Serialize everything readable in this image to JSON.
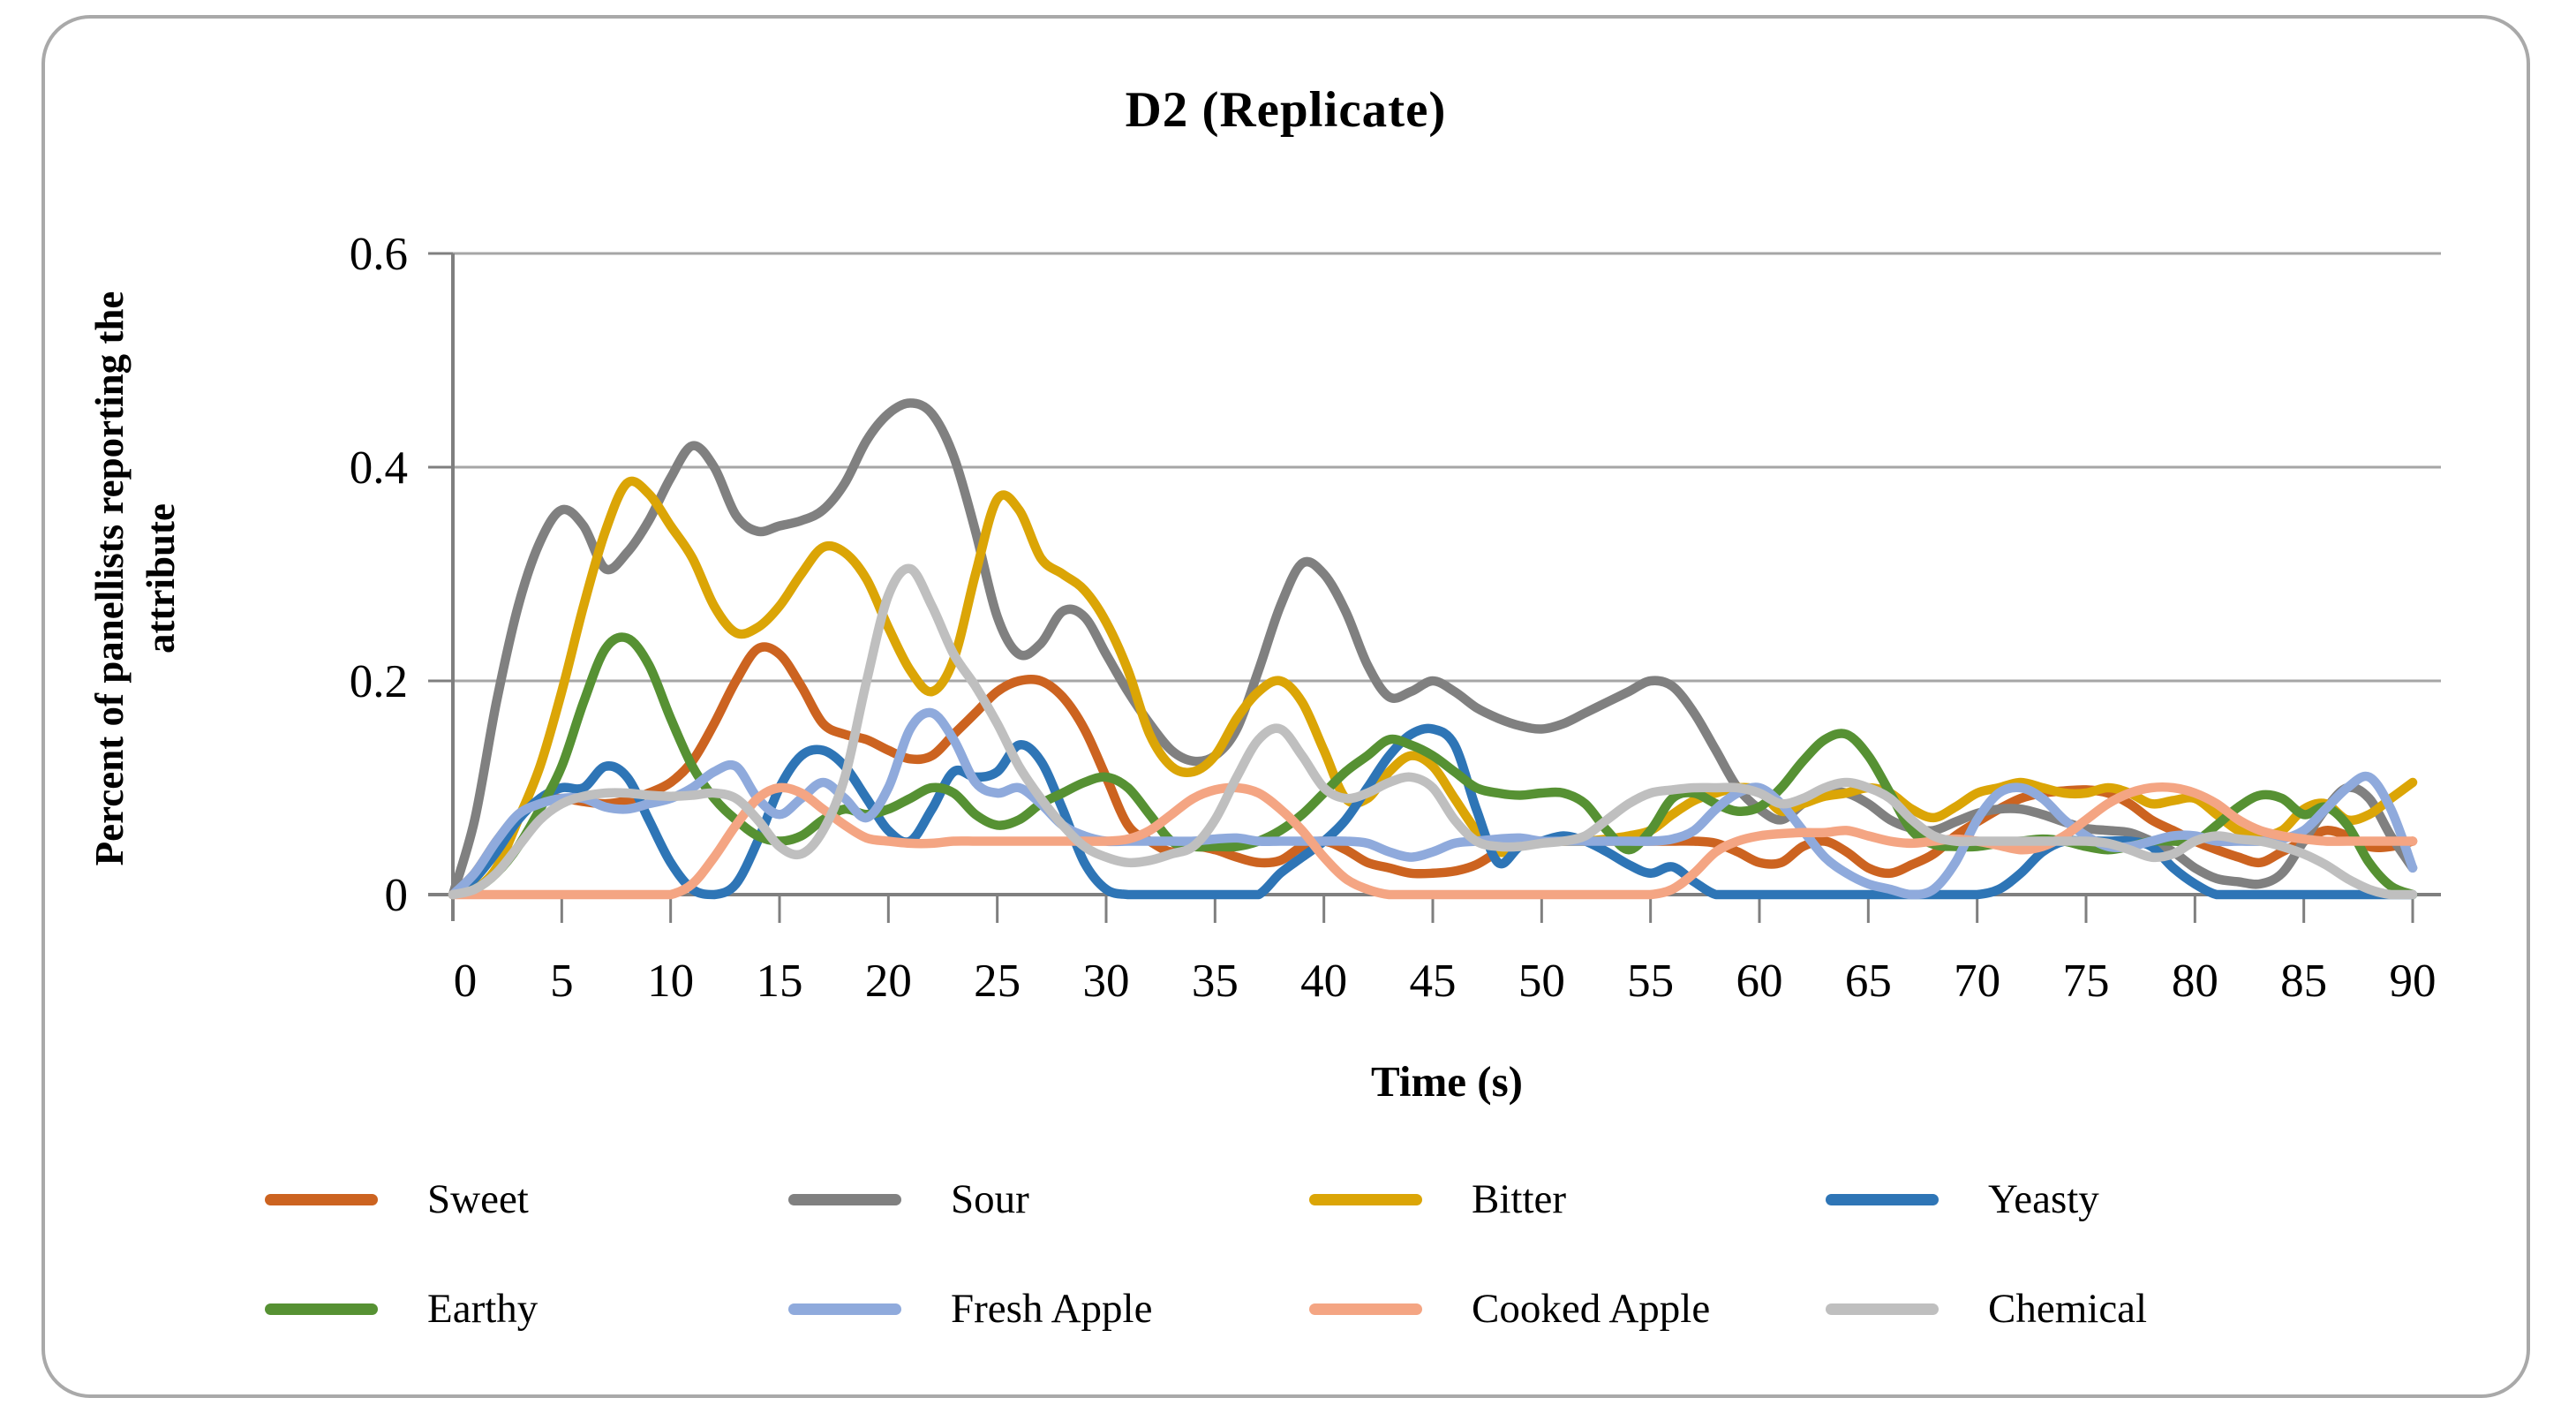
{
  "figure": {
    "border_color": "#A9A9A9",
    "background": "#FFFFFF"
  },
  "colors": {
    "axis": "#7F7F7F",
    "gridline": "#A6A6A6",
    "tick": "#7F7F7F",
    "text": "#000000"
  },
  "chart_data": {
    "type": "line",
    "smooth": true,
    "title": "D2 (Replicate)",
    "xlabel": "Time (s)",
    "ylabel": "Percent of panellists reporting the attribute",
    "ylabel_lines": [
      "Percent of panellists reporting the",
      "attribute"
    ],
    "xlim": [
      0,
      90
    ],
    "ylim": [
      0,
      0.6
    ],
    "x_ticks": [
      0,
      5,
      10,
      15,
      20,
      25,
      30,
      35,
      40,
      45,
      50,
      55,
      60,
      65,
      70,
      75,
      80,
      85,
      90
    ],
    "y_ticks": [
      0,
      0.2,
      0.4,
      0.6
    ],
    "y_tick_labels": [
      "0",
      "0.2",
      "0.4",
      "0.6"
    ],
    "grid": "horizontal",
    "legend_position": "bottom",
    "x": [
      0,
      1,
      2,
      3,
      4,
      5,
      6,
      7,
      8,
      9,
      10,
      11,
      12,
      13,
      14,
      15,
      16,
      17,
      18,
      19,
      20,
      21,
      22,
      23,
      24,
      25,
      26,
      27,
      28,
      29,
      30,
      31,
      32,
      33,
      34,
      35,
      36,
      37,
      38,
      39,
      40,
      41,
      42,
      43,
      44,
      45,
      46,
      47,
      48,
      49,
      50,
      51,
      52,
      53,
      54,
      55,
      56,
      57,
      58,
      59,
      60,
      61,
      62,
      63,
      64,
      65,
      66,
      67,
      68,
      69,
      70,
      71,
      72,
      73,
      74,
      75,
      76,
      77,
      78,
      79,
      80,
      81,
      82,
      83,
      84,
      85,
      86,
      87,
      88,
      89,
      90
    ],
    "series": [
      {
        "name": "Sweet",
        "color": "#CC6320",
        "values": [
          0,
          0.02,
          0.05,
          0.075,
          0.088,
          0.09,
          0.087,
          0.085,
          0.088,
          0.095,
          0.105,
          0.125,
          0.16,
          0.2,
          0.23,
          0.225,
          0.195,
          0.16,
          0.15,
          0.145,
          0.135,
          0.127,
          0.13,
          0.15,
          0.17,
          0.19,
          0.2,
          0.2,
          0.185,
          0.155,
          0.11,
          0.065,
          0.05,
          0.04,
          0.045,
          0.042,
          0.035,
          0.03,
          0.032,
          0.045,
          0.05,
          0.042,
          0.03,
          0.025,
          0.02,
          0.02,
          0.022,
          0.028,
          0.04,
          0.048,
          0.05,
          0.05,
          0.05,
          0.05,
          0.05,
          0.05,
          0.05,
          0.05,
          0.048,
          0.04,
          0.03,
          0.03,
          0.045,
          0.05,
          0.04,
          0.025,
          0.02,
          0.028,
          0.038,
          0.055,
          0.068,
          0.08,
          0.09,
          0.095,
          0.097,
          0.098,
          0.095,
          0.085,
          0.07,
          0.06,
          0.05,
          0.042,
          0.035,
          0.03,
          0.04,
          0.05,
          0.06,
          0.055,
          0.045,
          0.045,
          0.05
        ]
      },
      {
        "name": "Sour",
        "color": "#808080",
        "values": [
          0,
          0.07,
          0.18,
          0.27,
          0.33,
          0.36,
          0.345,
          0.305,
          0.32,
          0.35,
          0.39,
          0.42,
          0.4,
          0.355,
          0.34,
          0.345,
          0.35,
          0.36,
          0.385,
          0.425,
          0.45,
          0.46,
          0.45,
          0.41,
          0.34,
          0.26,
          0.225,
          0.235,
          0.265,
          0.26,
          0.225,
          0.19,
          0.16,
          0.135,
          0.125,
          0.13,
          0.155,
          0.21,
          0.27,
          0.31,
          0.3,
          0.265,
          0.215,
          0.185,
          0.19,
          0.2,
          0.19,
          0.175,
          0.165,
          0.158,
          0.155,
          0.16,
          0.17,
          0.18,
          0.19,
          0.2,
          0.195,
          0.17,
          0.135,
          0.1,
          0.08,
          0.07,
          0.085,
          0.095,
          0.095,
          0.085,
          0.07,
          0.062,
          0.06,
          0.068,
          0.076,
          0.08,
          0.08,
          0.075,
          0.068,
          0.062,
          0.06,
          0.058,
          0.05,
          0.04,
          0.025,
          0.015,
          0.012,
          0.01,
          0.02,
          0.05,
          0.08,
          0.1,
          0.09,
          0.055,
          0.025
        ]
      },
      {
        "name": "Bitter",
        "color": "#DBA506",
        "values": [
          0,
          0.005,
          0.025,
          0.07,
          0.12,
          0.19,
          0.27,
          0.34,
          0.385,
          0.375,
          0.345,
          0.315,
          0.27,
          0.245,
          0.25,
          0.27,
          0.3,
          0.325,
          0.32,
          0.295,
          0.25,
          0.21,
          0.19,
          0.22,
          0.3,
          0.37,
          0.36,
          0.315,
          0.3,
          0.285,
          0.255,
          0.21,
          0.15,
          0.12,
          0.115,
          0.13,
          0.165,
          0.19,
          0.2,
          0.18,
          0.135,
          0.09,
          0.09,
          0.115,
          0.13,
          0.12,
          0.09,
          0.06,
          0.04,
          0.045,
          0.05,
          0.05,
          0.05,
          0.052,
          0.055,
          0.06,
          0.075,
          0.088,
          0.095,
          0.1,
          0.097,
          0.078,
          0.085,
          0.092,
          0.095,
          0.1,
          0.095,
          0.08,
          0.072,
          0.082,
          0.095,
          0.1,
          0.105,
          0.1,
          0.095,
          0.095,
          0.1,
          0.095,
          0.085,
          0.088,
          0.09,
          0.075,
          0.06,
          0.055,
          0.06,
          0.08,
          0.085,
          0.07,
          0.075,
          0.09,
          0.105
        ]
      },
      {
        "name": "Yeasty",
        "color": "#2E75B6",
        "values": [
          0,
          0.015,
          0.04,
          0.07,
          0.09,
          0.1,
          0.1,
          0.12,
          0.11,
          0.07,
          0.03,
          0.005,
          0,
          0.01,
          0.05,
          0.1,
          0.13,
          0.135,
          0.12,
          0.09,
          0.06,
          0.05,
          0.08,
          0.115,
          0.11,
          0.115,
          0.14,
          0.125,
          0.08,
          0.03,
          0.005,
          0,
          0,
          0,
          0,
          0,
          0,
          0,
          0.02,
          0.035,
          0.05,
          0.07,
          0.1,
          0.13,
          0.15,
          0.155,
          0.14,
          0.08,
          0.03,
          0.045,
          0.05,
          0.055,
          0.05,
          0.04,
          0.028,
          0.02,
          0.026,
          0.012,
          0,
          0,
          0,
          0,
          0,
          0,
          0,
          0,
          0,
          0,
          0,
          0,
          0,
          0.005,
          0.02,
          0.04,
          0.05,
          0.05,
          0.05,
          0.05,
          0.045,
          0.025,
          0.01,
          0,
          0,
          0,
          0,
          0,
          0,
          0,
          0,
          0,
          0
        ]
      },
      {
        "name": "Earthy",
        "color": "#569133",
        "values": [
          0,
          0.005,
          0.02,
          0.045,
          0.08,
          0.12,
          0.18,
          0.23,
          0.24,
          0.215,
          0.165,
          0.12,
          0.09,
          0.07,
          0.055,
          0.05,
          0.055,
          0.07,
          0.08,
          0.075,
          0.08,
          0.09,
          0.1,
          0.095,
          0.075,
          0.065,
          0.07,
          0.085,
          0.095,
          0.105,
          0.11,
          0.1,
          0.075,
          0.05,
          0.045,
          0.045,
          0.045,
          0.05,
          0.06,
          0.075,
          0.095,
          0.115,
          0.13,
          0.145,
          0.14,
          0.13,
          0.115,
          0.1,
          0.095,
          0.093,
          0.095,
          0.095,
          0.085,
          0.06,
          0.042,
          0.06,
          0.09,
          0.095,
          0.085,
          0.078,
          0.082,
          0.1,
          0.125,
          0.145,
          0.15,
          0.13,
          0.095,
          0.06,
          0.047,
          0.045,
          0.045,
          0.048,
          0.05,
          0.052,
          0.05,
          0.045,
          0.042,
          0.045,
          0.05,
          0.05,
          0.05,
          0.065,
          0.082,
          0.093,
          0.09,
          0.075,
          0.082,
          0.065,
          0.03,
          0.008,
          0
        ]
      },
      {
        "name": "Fresh Apple",
        "color": "#8FAADC",
        "values": [
          0,
          0.02,
          0.05,
          0.075,
          0.085,
          0.09,
          0.09,
          0.082,
          0.08,
          0.085,
          0.09,
          0.1,
          0.115,
          0.12,
          0.09,
          0.075,
          0.09,
          0.105,
          0.09,
          0.072,
          0.1,
          0.155,
          0.17,
          0.145,
          0.105,
          0.095,
          0.1,
          0.085,
          0.065,
          0.055,
          0.05,
          0.05,
          0.05,
          0.05,
          0.05,
          0.052,
          0.053,
          0.05,
          0.05,
          0.05,
          0.05,
          0.05,
          0.048,
          0.04,
          0.035,
          0.04,
          0.048,
          0.05,
          0.052,
          0.053,
          0.05,
          0.05,
          0.05,
          0.05,
          0.05,
          0.05,
          0.052,
          0.06,
          0.08,
          0.095,
          0.1,
          0.085,
          0.06,
          0.035,
          0.02,
          0.01,
          0.005,
          0,
          0.005,
          0.03,
          0.07,
          0.095,
          0.1,
          0.09,
          0.07,
          0.055,
          0.045,
          0.045,
          0.05,
          0.055,
          0.055,
          0.05,
          0.05,
          0.05,
          0.052,
          0.06,
          0.08,
          0.1,
          0.11,
          0.08,
          0.025
        ]
      },
      {
        "name": "Cooked Apple",
        "color": "#F4A583",
        "values": [
          0,
          0,
          0,
          0,
          0,
          0,
          0,
          0,
          0,
          0,
          0,
          0.01,
          0.035,
          0.065,
          0.09,
          0.1,
          0.095,
          0.08,
          0.065,
          0.053,
          0.05,
          0.048,
          0.048,
          0.05,
          0.05,
          0.05,
          0.05,
          0.05,
          0.05,
          0.05,
          0.05,
          0.052,
          0.06,
          0.075,
          0.09,
          0.098,
          0.1,
          0.095,
          0.08,
          0.06,
          0.035,
          0.015,
          0.005,
          0,
          0,
          0,
          0,
          0,
          0,
          0,
          0,
          0,
          0,
          0,
          0,
          0,
          0.005,
          0.02,
          0.04,
          0.05,
          0.055,
          0.057,
          0.058,
          0.058,
          0.06,
          0.055,
          0.05,
          0.048,
          0.05,
          0.052,
          0.05,
          0.046,
          0.042,
          0.045,
          0.055,
          0.07,
          0.085,
          0.095,
          0.1,
          0.1,
          0.095,
          0.085,
          0.07,
          0.06,
          0.055,
          0.052,
          0.05,
          0.05,
          0.05,
          0.05,
          0.05
        ]
      },
      {
        "name": "Chemical",
        "color": "#BFBFBF",
        "values": [
          0,
          0.005,
          0.02,
          0.045,
          0.07,
          0.085,
          0.092,
          0.095,
          0.095,
          0.093,
          0.092,
          0.093,
          0.095,
          0.09,
          0.07,
          0.045,
          0.038,
          0.06,
          0.11,
          0.2,
          0.28,
          0.305,
          0.27,
          0.225,
          0.195,
          0.16,
          0.12,
          0.09,
          0.065,
          0.045,
          0.035,
          0.03,
          0.032,
          0.038,
          0.045,
          0.07,
          0.11,
          0.145,
          0.155,
          0.13,
          0.1,
          0.09,
          0.095,
          0.105,
          0.11,
          0.1,
          0.07,
          0.05,
          0.045,
          0.045,
          0.048,
          0.05,
          0.055,
          0.07,
          0.085,
          0.095,
          0.098,
          0.1,
          0.1,
          0.1,
          0.095,
          0.085,
          0.09,
          0.1,
          0.105,
          0.1,
          0.09,
          0.07,
          0.055,
          0.05,
          0.05,
          0.05,
          0.05,
          0.05,
          0.05,
          0.05,
          0.048,
          0.042,
          0.035,
          0.038,
          0.05,
          0.055,
          0.052,
          0.05,
          0.045,
          0.038,
          0.028,
          0.015,
          0.005,
          0,
          0
        ]
      }
    ]
  }
}
